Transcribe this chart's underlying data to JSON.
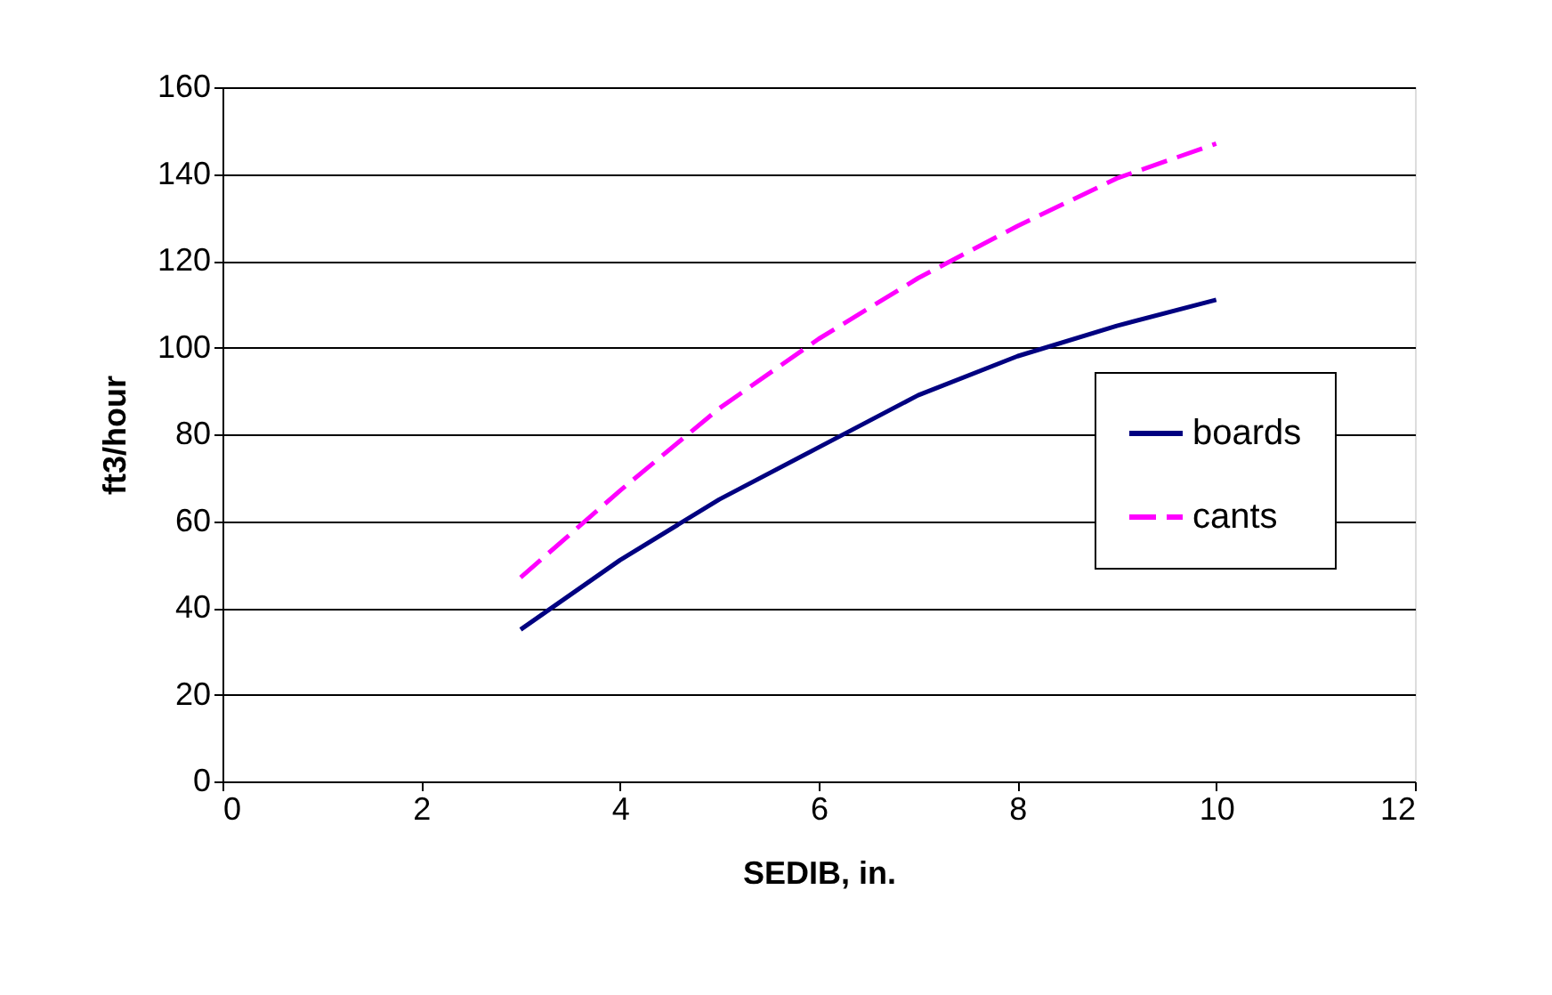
{
  "chart_data": {
    "type": "line",
    "xlabel": "SEDIB, in.",
    "ylabel": "ft3/hour",
    "x": [
      3,
      4,
      5,
      6,
      7,
      8,
      9,
      10
    ],
    "series": [
      {
        "name": "boards",
        "color": "#000080",
        "line_style": "solid",
        "values": [
          35,
          51,
          65,
          77,
          89,
          98,
          105,
          111
        ]
      },
      {
        "name": "cants",
        "color": "#ff00ff",
        "line_style": "dashed",
        "values": [
          47,
          67,
          86,
          102,
          116,
          128,
          139,
          147
        ]
      }
    ],
    "xlim": [
      0,
      12
    ],
    "xticks": [
      0,
      2,
      4,
      6,
      8,
      10,
      12
    ],
    "ylim": [
      0,
      160
    ],
    "yticks": [
      0,
      20,
      40,
      60,
      80,
      100,
      120,
      140,
      160
    ],
    "grid": "y",
    "legend": "right",
    "marker": "none"
  }
}
